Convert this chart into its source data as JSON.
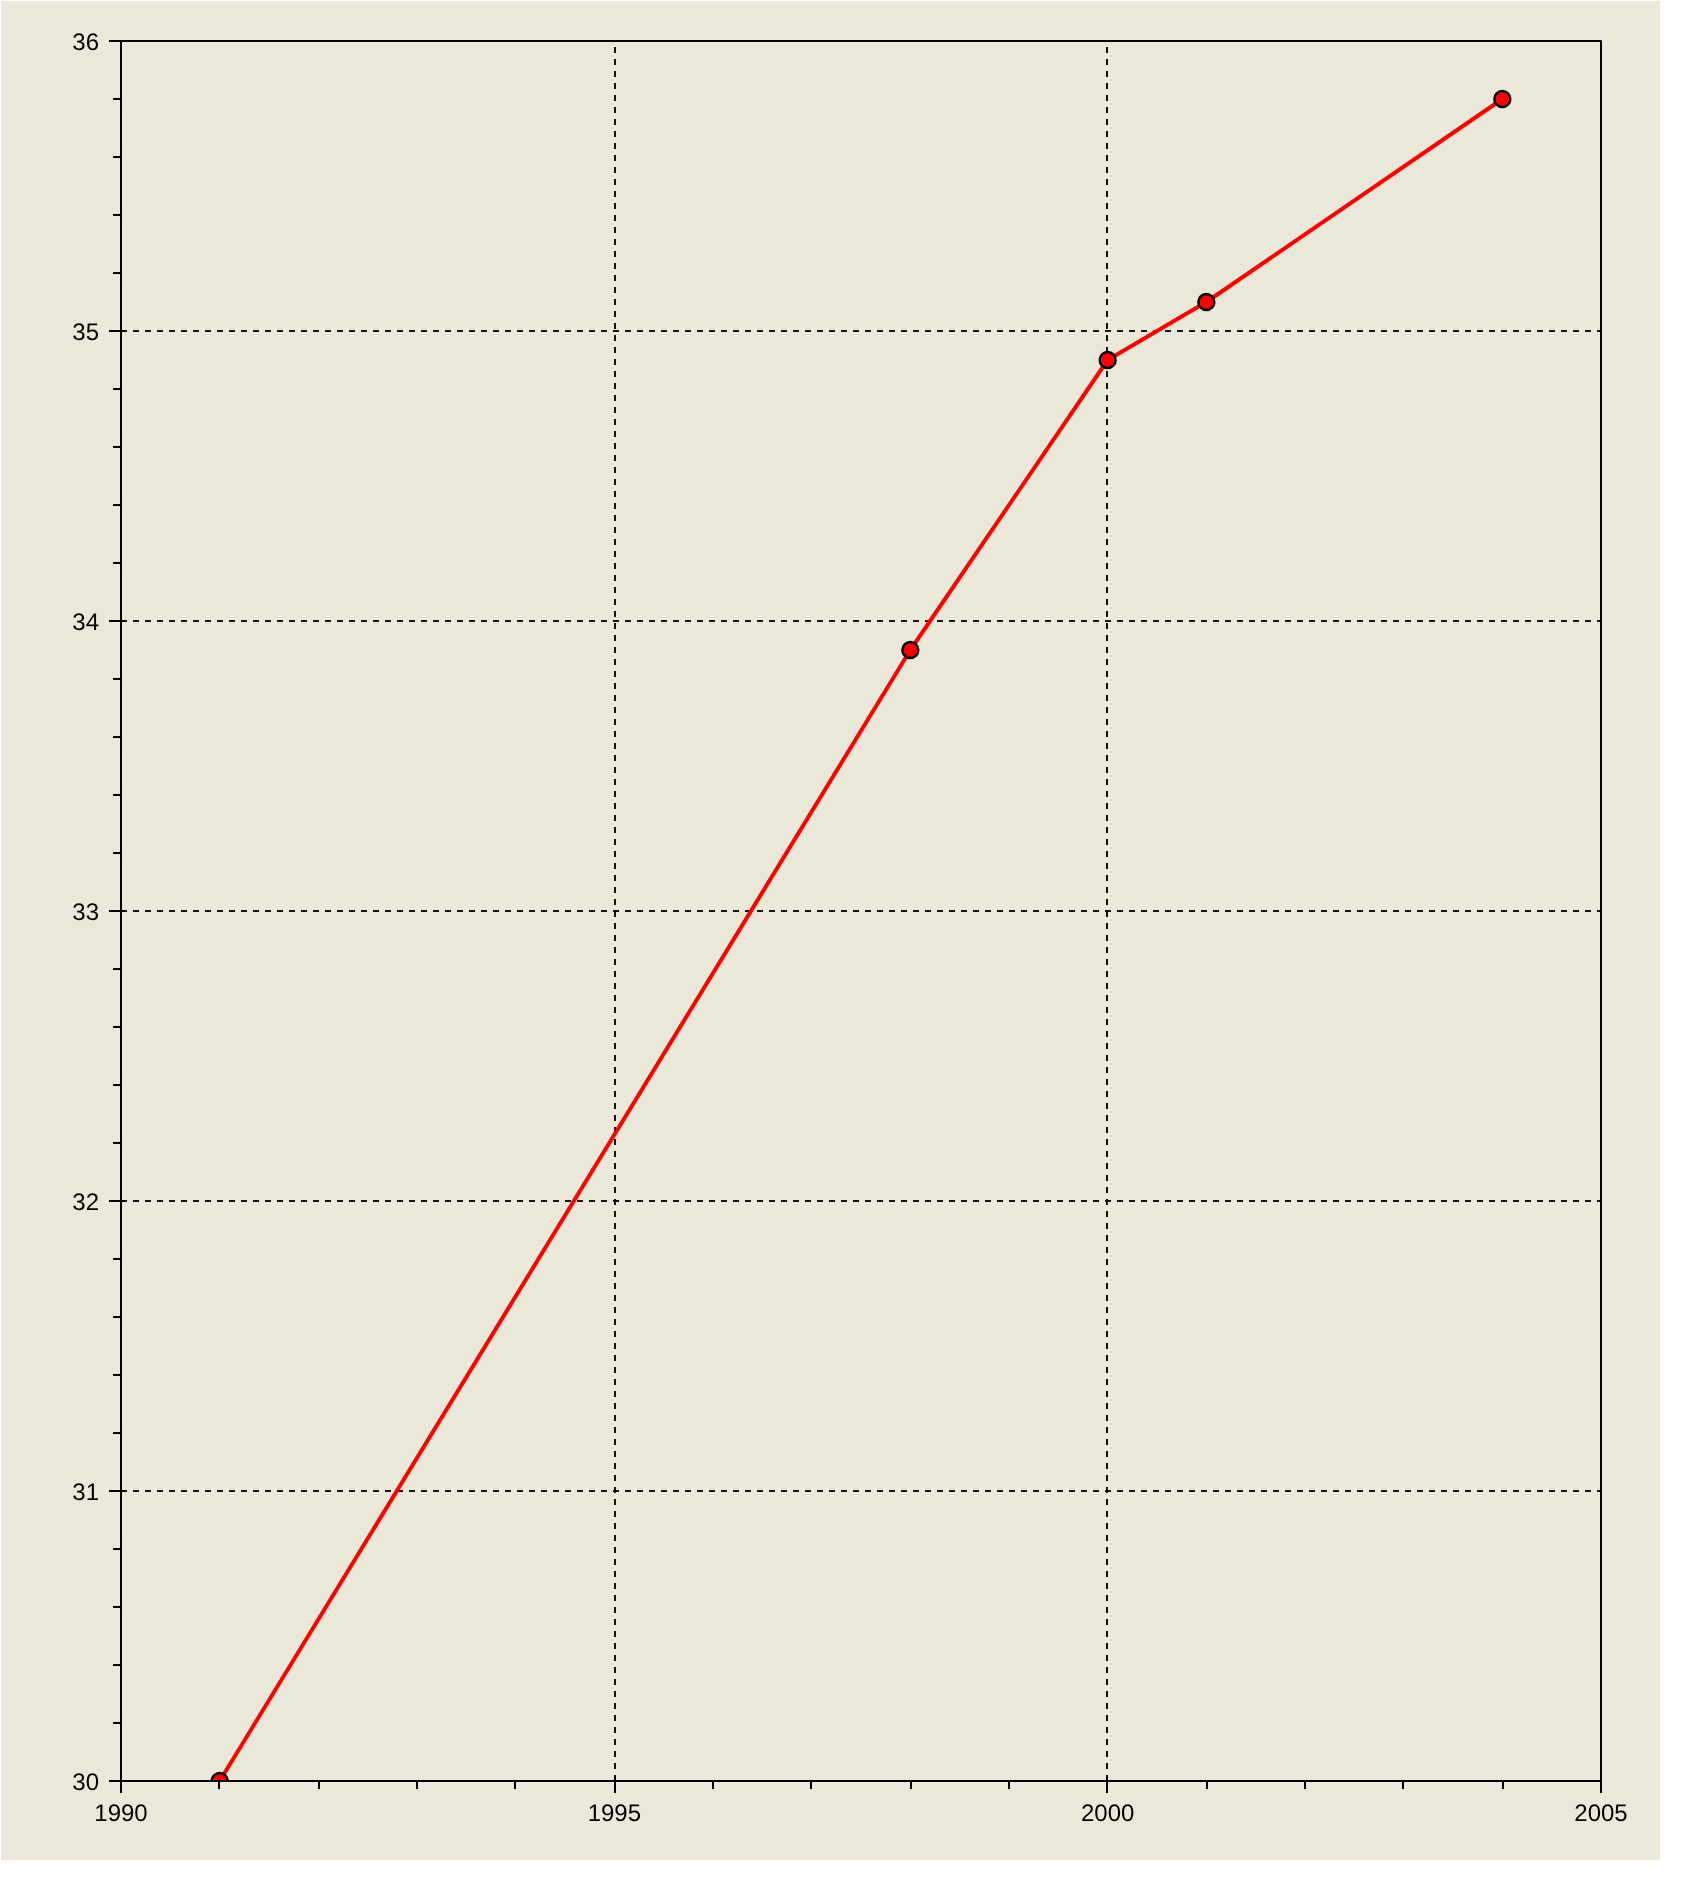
{
  "chart_data": {
    "type": "line",
    "x": [
      1991,
      1998,
      2000,
      2001,
      2004
    ],
    "series": [
      {
        "color": "#ff0000",
        "values": [
          30.0,
          33.9,
          34.9,
          35.1,
          35.8
        ]
      }
    ],
    "xlim": [
      1990,
      2005
    ],
    "xticks": [
      1990,
      1995,
      2000,
      2005
    ],
    "ylim": [
      30,
      36
    ],
    "yticks": [
      30,
      31,
      32,
      33,
      34,
      35,
      36
    ],
    "grid": true,
    "marker": "circle",
    "line_style": "solid"
  }
}
